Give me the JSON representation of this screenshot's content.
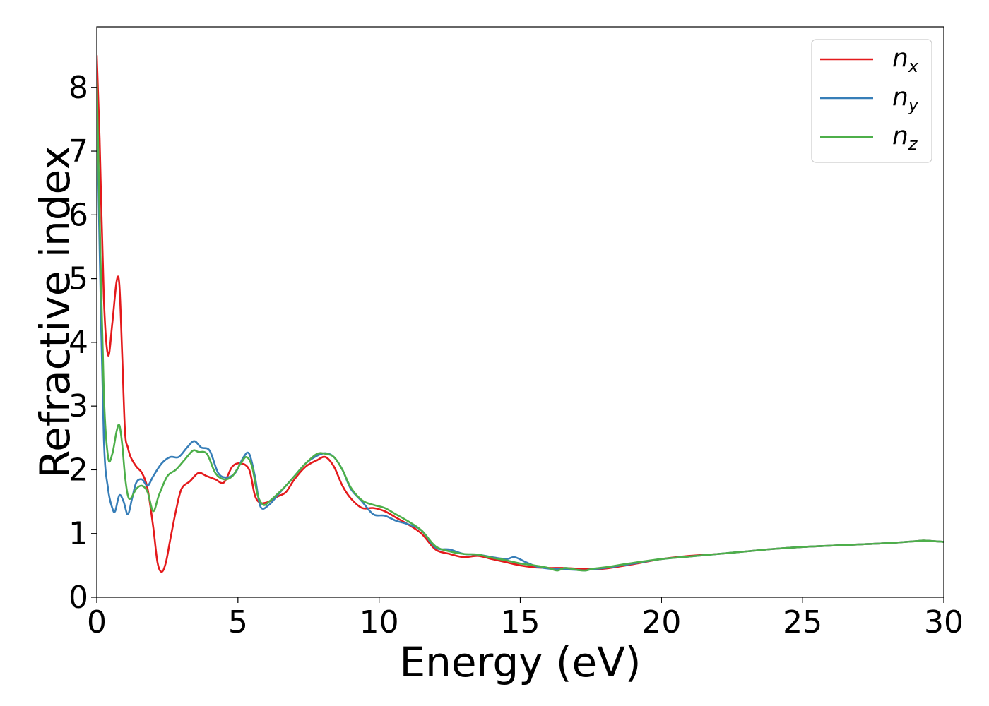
{
  "chart_data": {
    "type": "line",
    "title": "",
    "xlabel": "Energy (eV)",
    "ylabel": "Refractive index",
    "xlim": [
      0,
      30
    ],
    "ylim": [
      0,
      8.95
    ],
    "xticks": [
      0,
      5,
      10,
      15,
      20,
      25,
      30
    ],
    "yticks": [
      0,
      1,
      2,
      3,
      4,
      5,
      6,
      7,
      8
    ],
    "grid": false,
    "legend_position": "top-right",
    "series": [
      {
        "name": "n",
        "subscript": "x",
        "color": "#e41a1c",
        "x": [
          0,
          0.1,
          0.25,
          0.4,
          0.55,
          0.7,
          0.8,
          0.9,
          1.0,
          1.1,
          1.2,
          1.4,
          1.6,
          1.8,
          2.0,
          2.15,
          2.3,
          2.45,
          2.6,
          2.8,
          3.0,
          3.3,
          3.6,
          3.9,
          4.2,
          4.5,
          4.8,
          5.1,
          5.4,
          5.6,
          5.8,
          6.1,
          6.4,
          6.7,
          7.0,
          7.4,
          7.8,
          8.1,
          8.4,
          8.7,
          9.0,
          9.4,
          9.8,
          10.2,
          10.6,
          11.0,
          11.5,
          12.0,
          12.5,
          13.0,
          13.5,
          14.0,
          14.5,
          15.0,
          15.5,
          16.0,
          16.5,
          17.0,
          17.5,
          18.0,
          19.0,
          20.0,
          21.0,
          22.0,
          23.0,
          24.0,
          25.0,
          26.0,
          27.0,
          28.0,
          29.0,
          29.3,
          30.0
        ],
        "y": [
          8.5,
          7.2,
          4.7,
          3.8,
          4.3,
          4.95,
          4.9,
          3.8,
          2.6,
          2.35,
          2.2,
          2.05,
          1.95,
          1.7,
          1.1,
          0.55,
          0.4,
          0.55,
          0.9,
          1.35,
          1.7,
          1.82,
          1.95,
          1.9,
          1.85,
          1.8,
          2.05,
          2.1,
          2.0,
          1.6,
          1.48,
          1.5,
          1.58,
          1.65,
          1.85,
          2.05,
          2.15,
          2.2,
          2.05,
          1.75,
          1.55,
          1.4,
          1.4,
          1.35,
          1.25,
          1.15,
          1.0,
          0.75,
          0.68,
          0.63,
          0.65,
          0.6,
          0.55,
          0.5,
          0.47,
          0.46,
          0.46,
          0.45,
          0.44,
          0.45,
          0.52,
          0.6,
          0.65,
          0.68,
          0.72,
          0.76,
          0.79,
          0.81,
          0.83,
          0.85,
          0.88,
          0.89,
          0.87
        ]
      },
      {
        "name": "n",
        "subscript": "y",
        "color": "#377eb8",
        "x": [
          0,
          0.1,
          0.25,
          0.4,
          0.55,
          0.65,
          0.8,
          0.95,
          1.1,
          1.25,
          1.4,
          1.6,
          1.8,
          2.0,
          2.3,
          2.6,
          2.9,
          3.2,
          3.45,
          3.7,
          4.0,
          4.3,
          4.6,
          4.9,
          5.2,
          5.4,
          5.6,
          5.8,
          6.1,
          6.4,
          6.7,
          7.0,
          7.4,
          7.8,
          8.1,
          8.4,
          8.7,
          9.0,
          9.4,
          9.8,
          10.2,
          10.6,
          11.0,
          11.5,
          12.0,
          12.5,
          13.0,
          13.5,
          14.0,
          14.5,
          14.8,
          15.2,
          15.6,
          16.0,
          16.5,
          17.0,
          17.3,
          17.5,
          18.0,
          19.0,
          20.0,
          21.0,
          22.0,
          23.0,
          24.0,
          25.0,
          26.0,
          27.0,
          28.0,
          29.0,
          29.3,
          30.0
        ],
        "y": [
          7.9,
          5.5,
          2.5,
          1.7,
          1.4,
          1.35,
          1.6,
          1.5,
          1.3,
          1.55,
          1.8,
          1.85,
          1.75,
          1.9,
          2.1,
          2.2,
          2.2,
          2.35,
          2.45,
          2.35,
          2.3,
          1.95,
          1.88,
          1.95,
          2.2,
          2.25,
          1.9,
          1.42,
          1.45,
          1.6,
          1.75,
          1.9,
          2.1,
          2.22,
          2.26,
          2.2,
          2.0,
          1.7,
          1.5,
          1.3,
          1.28,
          1.2,
          1.15,
          1.05,
          0.78,
          0.75,
          0.68,
          0.67,
          0.63,
          0.6,
          0.63,
          0.55,
          0.48,
          0.45,
          0.44,
          0.43,
          0.42,
          0.44,
          0.46,
          0.53,
          0.6,
          0.64,
          0.68,
          0.72,
          0.76,
          0.79,
          0.81,
          0.83,
          0.85,
          0.88,
          0.89,
          0.87
        ]
      },
      {
        "name": "n",
        "subscript": "z",
        "color": "#4daf4a",
        "x": [
          0,
          0.1,
          0.25,
          0.4,
          0.55,
          0.7,
          0.8,
          0.9,
          1.0,
          1.1,
          1.2,
          1.4,
          1.6,
          1.8,
          2.0,
          2.2,
          2.5,
          2.8,
          3.1,
          3.4,
          3.6,
          3.9,
          4.2,
          4.5,
          4.8,
          5.1,
          5.3,
          5.5,
          5.7,
          5.9,
          6.1,
          6.4,
          6.7,
          7.0,
          7.4,
          7.8,
          8.1,
          8.4,
          8.7,
          9.0,
          9.4,
          9.8,
          10.2,
          10.6,
          11.0,
          11.5,
          12.0,
          12.5,
          13.0,
          13.5,
          14.0,
          14.5,
          15.0,
          15.5,
          16.0,
          16.3,
          16.6,
          17.0,
          17.3,
          17.6,
          18.0,
          19.0,
          20.0,
          21.0,
          22.0,
          23.0,
          24.0,
          25.0,
          26.0,
          27.0,
          28.0,
          29.0,
          29.3,
          30.0
        ],
        "y": [
          8.1,
          6.0,
          3.2,
          2.2,
          2.25,
          2.6,
          2.7,
          2.4,
          1.9,
          1.6,
          1.55,
          1.7,
          1.75,
          1.65,
          1.35,
          1.6,
          1.9,
          2.0,
          2.15,
          2.3,
          2.28,
          2.25,
          1.95,
          1.85,
          1.9,
          2.1,
          2.2,
          2.05,
          1.6,
          1.45,
          1.5,
          1.62,
          1.75,
          1.9,
          2.1,
          2.25,
          2.25,
          2.2,
          2.0,
          1.72,
          1.52,
          1.45,
          1.4,
          1.3,
          1.2,
          1.05,
          0.8,
          0.72,
          0.68,
          0.67,
          0.62,
          0.58,
          0.53,
          0.5,
          0.46,
          0.42,
          0.46,
          0.43,
          0.42,
          0.45,
          0.47,
          0.54,
          0.6,
          0.64,
          0.68,
          0.72,
          0.76,
          0.79,
          0.81,
          0.83,
          0.85,
          0.88,
          0.89,
          0.87
        ]
      }
    ]
  }
}
